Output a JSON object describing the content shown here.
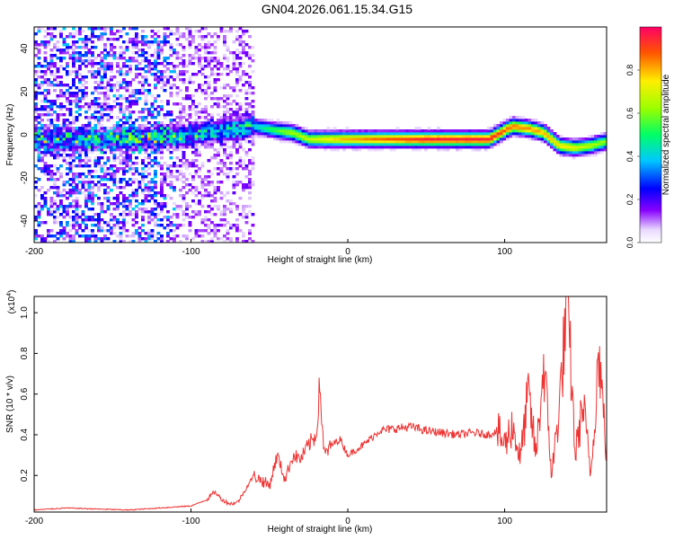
{
  "title": "GN04.2026.061.15.34.G15",
  "colors": {
    "snr_line": "#ee3333",
    "axis": "#000000",
    "background": "#ffffff"
  },
  "chart_data": [
    {
      "type": "heatmap",
      "xlabel": "Height of straight line (km)",
      "ylabel": "Frequency (Hz)",
      "xlim": [
        -200,
        165
      ],
      "ylim": [
        -50,
        50
      ],
      "xticks": [
        -200,
        -100,
        0,
        100
      ],
      "xtick_labels": [
        "-200",
        "-100",
        "0",
        "100"
      ],
      "yticks": [
        -40,
        -20,
        0,
        20,
        40
      ],
      "ytick_labels": [
        "-40",
        "-20",
        "0",
        "20",
        "40"
      ],
      "colorbar": {
        "label": "Normalized spectral amplitude",
        "range": [
          0,
          1
        ],
        "ticks": [
          0.0,
          0.2,
          0.4,
          0.6,
          0.8
        ],
        "tick_labels": [
          "0.0",
          "0.2",
          "0.4",
          "0.6",
          "0.8"
        ]
      },
      "ridge_frequency": {
        "x": [
          -180,
          -150,
          -120,
          -100,
          -80,
          -60,
          -45,
          -35,
          -25,
          -10,
          0,
          20,
          50,
          90,
          95,
          105,
          115,
          125,
          135,
          145,
          155,
          165
        ],
        "y": [
          -2,
          -2,
          -1,
          0,
          2,
          4,
          2,
          1,
          -2,
          -2,
          -2,
          -2,
          -2,
          -2,
          0,
          4,
          3,
          1,
          -5,
          -6,
          -5,
          -3
        ]
      },
      "ridge_amplitude": {
        "x": [
          -180,
          -120,
          -100,
          -80,
          -60,
          -40,
          -20,
          0,
          50,
          90,
          105,
          125,
          145,
          165
        ],
        "y": [
          0.3,
          0.35,
          0.3,
          0.35,
          0.4,
          0.6,
          0.7,
          0.8,
          0.95,
          0.95,
          0.85,
          0.8,
          0.7,
          0.6
        ]
      }
    },
    {
      "type": "line",
      "xlabel": "Height of straight line (km)",
      "ylabel": "SNR (10 * v/v)",
      "y_multiplier": "(x10",
      "y_multiplier_exp": "4",
      "y_multiplier_close": ")",
      "xlim": [
        -200,
        165
      ],
      "ylim": [
        0.02,
        1.08
      ],
      "xticks": [
        -200,
        -100,
        0,
        100
      ],
      "xtick_labels": [
        "-200",
        "-100",
        "0",
        "100"
      ],
      "yticks": [
        0.2,
        0.4,
        0.6,
        0.8,
        1.0
      ],
      "ytick_labels": [
        "0.2",
        "0.4",
        "0.6",
        "0.8",
        "1.0"
      ],
      "series": [
        {
          "x": [
            -200,
            -180,
            -160,
            -140,
            -120,
            -100,
            -90,
            -85,
            -80,
            -75,
            -70,
            -60,
            -50,
            -45,
            -40,
            -35,
            -30,
            -25,
            -20,
            -18,
            -15,
            -10,
            -5,
            0,
            10,
            20,
            30,
            40,
            50,
            60,
            70,
            80,
            90,
            95,
            100,
            105,
            110,
            115,
            120,
            125,
            130,
            135,
            140,
            145,
            150,
            155,
            160,
            165
          ],
          "y": [
            0.03,
            0.04,
            0.035,
            0.03,
            0.04,
            0.05,
            0.08,
            0.12,
            0.08,
            0.06,
            0.07,
            0.2,
            0.15,
            0.3,
            0.18,
            0.3,
            0.28,
            0.35,
            0.4,
            0.65,
            0.3,
            0.35,
            0.38,
            0.3,
            0.35,
            0.42,
            0.43,
            0.44,
            0.42,
            0.41,
            0.4,
            0.41,
            0.4,
            0.42,
            0.35,
            0.45,
            0.28,
            0.6,
            0.3,
            0.75,
            0.2,
            0.55,
            1.07,
            0.3,
            0.55,
            0.2,
            0.82,
            0.3
          ]
        }
      ]
    }
  ]
}
